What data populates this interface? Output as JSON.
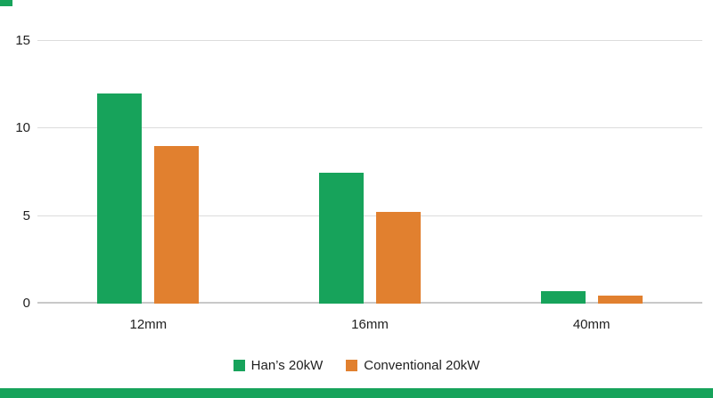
{
  "chart_data": {
    "type": "bar",
    "title": "",
    "xlabel": "",
    "ylabel": "",
    "categories": [
      "12mm",
      "16mm",
      "40mm"
    ],
    "series": [
      {
        "name": "Han’s 20kW",
        "color": "#17A35B",
        "values": [
          12,
          7.5,
          0.7
        ]
      },
      {
        "name": "Conventional 20kW",
        "color": "#E1802F",
        "values": [
          9,
          5.25,
          0.45
        ]
      }
    ],
    "ylim": [
      0,
      15
    ],
    "yticks": [
      0,
      5,
      10,
      15
    ],
    "grid": true,
    "legend_position": "bottom"
  },
  "accents": {
    "footer_stripe_color": "#17A35B",
    "corner_accent_color": "#17A35B"
  }
}
